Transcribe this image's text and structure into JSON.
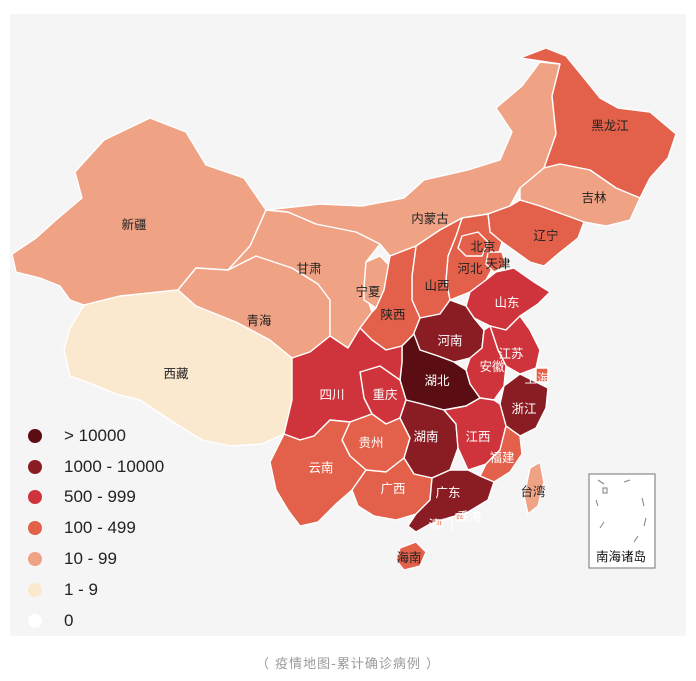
{
  "colors": {
    "gt10000": "#5a0d13",
    "1000_10000": "#8a1d24",
    "500_999": "#cf333b",
    "100_499": "#e3604a",
    "10_99": "#f0a285",
    "1_9": "#fbe9cf",
    "zero": "#ffffff",
    "panel": "#f5f5f5"
  },
  "legend": [
    {
      "label": "> 10000",
      "color": "#5a0d13"
    },
    {
      "label": "1000 - 10000",
      "color": "#8a1d24"
    },
    {
      "label": "500 - 999",
      "color": "#cf333b"
    },
    {
      "label": "100 - 499",
      "color": "#e3604a"
    },
    {
      "label": "10 - 99",
      "color": "#f0a285"
    },
    {
      "label": "1 - 9",
      "color": "#fbe9cf"
    },
    {
      "label": "0",
      "color": "#ffffff"
    }
  ],
  "provinces": {
    "heilongjiang": {
      "name": "黑龙江",
      "range": "100 - 499"
    },
    "jilin": {
      "name": "吉林",
      "range": "10 - 99"
    },
    "liaoning": {
      "name": "辽宁",
      "range": "100 - 499"
    },
    "neimenggu": {
      "name": "内蒙古",
      "range": "10 - 99"
    },
    "xinjiang": {
      "name": "新疆",
      "range": "10 - 99"
    },
    "gansu": {
      "name": "甘肃",
      "range": "10 - 99"
    },
    "qinghai": {
      "name": "青海",
      "range": "10 - 99"
    },
    "xizang": {
      "name": "西藏",
      "range": "1 - 9"
    },
    "ningxia": {
      "name": "宁夏",
      "range": "10 - 99"
    },
    "shaanxi": {
      "name": "陕西",
      "range": "100 - 499"
    },
    "shanxi": {
      "name": "山西",
      "range": "100 - 499"
    },
    "hebei": {
      "name": "河北",
      "range": "100 - 499"
    },
    "beijing": {
      "name": "北京",
      "range": "100 - 499"
    },
    "tianjin": {
      "name": "天津",
      "range": "100 - 499"
    },
    "shandong": {
      "name": "山东",
      "range": "500 - 999"
    },
    "henan": {
      "name": "河南",
      "range": "1000 - 10000"
    },
    "jiangsu": {
      "name": "江苏",
      "range": "500 - 999"
    },
    "anhui": {
      "name": "安徽",
      "range": "500 - 999"
    },
    "shanghai": {
      "name": "上海",
      "range": "100 - 499"
    },
    "zhejiang": {
      "name": "浙江",
      "range": "1000 - 10000"
    },
    "hubei": {
      "name": "湖北",
      "range": "> 10000"
    },
    "chongqing": {
      "name": "重庆",
      "range": "500 - 999"
    },
    "sichuan": {
      "name": "四川",
      "range": "500 - 999"
    },
    "guizhou": {
      "name": "贵州",
      "range": "100 - 499"
    },
    "yunnan": {
      "name": "云南",
      "range": "100 - 499"
    },
    "hunan": {
      "name": "湖南",
      "range": "1000 - 10000"
    },
    "jiangxi": {
      "name": "江西",
      "range": "500 - 999"
    },
    "fujian": {
      "name": "福建",
      "range": "100 - 499"
    },
    "guangxi": {
      "name": "广西",
      "range": "100 - 499"
    },
    "guangdong": {
      "name": "广东",
      "range": "1000 - 10000"
    },
    "aomen": {
      "name": "澳门",
      "range": "10 - 99"
    },
    "xianggang": {
      "name": "香港",
      "range": "10 - 99"
    },
    "hainan": {
      "name": "海南",
      "range": "100 - 499"
    },
    "taiwan": {
      "name": "台湾",
      "range": "10 - 99"
    }
  },
  "inset": {
    "label": "南海诸岛"
  },
  "caption": "（ 疫情地图-累计确诊病例 ）"
}
